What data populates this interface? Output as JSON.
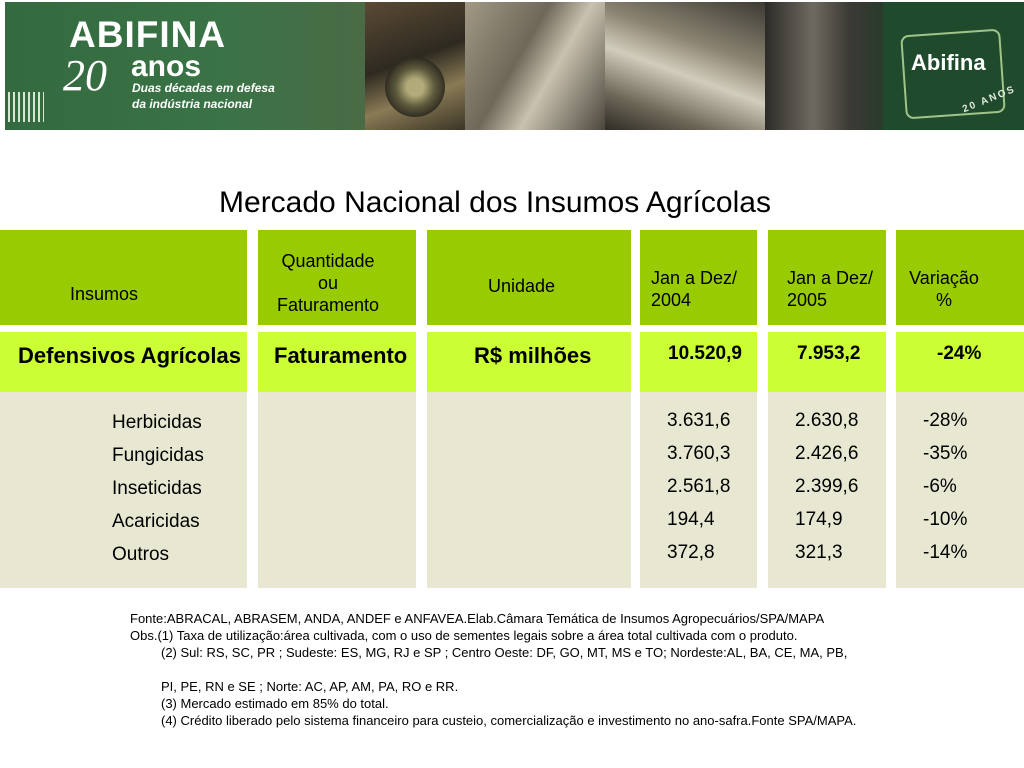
{
  "banner": {
    "brand": "ABIFINA",
    "years_number": "20",
    "years_word": "anos",
    "tagline_line1": "Duas décadas em defesa",
    "tagline_line2": "da indústria nacional",
    "logo_text": "Abifina",
    "logo_sub": "20 ANOS"
  },
  "title": "Mercado Nacional dos Insumos Agrícolas",
  "table": {
    "headers": {
      "insumos": "Insumos",
      "quantidade_l1": "Quantidade",
      "quantidade_l2": "ou",
      "quantidade_l3": "Faturamento",
      "unidade": "Unidade",
      "y2004_l1": "Jan a Dez/",
      "y2004_l2": "2004",
      "y2005_l1": "Jan a Dez/",
      "y2005_l2": "2005",
      "var_l1": "Variação",
      "var_l2": "%"
    },
    "total": {
      "name": "Defensivos Agrícolas",
      "tipo": "Faturamento",
      "unidade": "R$ milhões",
      "v2004": "10.520,9",
      "v2005": "7.953,2",
      "variacao": "-24%"
    },
    "rows": [
      {
        "name": "Herbicidas",
        "v2004": "3.631,6",
        "v2005": "2.630,8",
        "variacao": "-28%"
      },
      {
        "name": "Fungicidas",
        "v2004": "3.760,3",
        "v2005": "2.426,6",
        "variacao": "-35%"
      },
      {
        "name": "Inseticidas",
        "v2004": "2.561,8",
        "v2005": "2.399,6",
        "variacao": "-6%"
      },
      {
        "name": "Acaricidas",
        "v2004": "194,4",
        "v2005": "174,9",
        "variacao": "-10%"
      },
      {
        "name": "Outros",
        "v2004": "372,8",
        "v2005": "321,3",
        "variacao": "-14%"
      }
    ]
  },
  "notes": {
    "fonte": "Fonte:ABRACAL, ABRASEM, ANDA, ANDEF e ANFAVEA.Elab.Câmara Temática de Insumos Agropecuários/SPA/MAPA",
    "obs1": "Obs.(1) Taxa de utilização:área cultivada, com o uso de sementes legais sobre a área total cultivada com o produto.",
    "obs2a": "(2) Sul: RS, SC, PR ; Sudeste: ES, MG, RJ e SP ; Centro Oeste: DF, GO, MT, MS e TO; Nordeste:AL, BA, CE, MA, PB,",
    "obs2b": "PI, PE, RN e SE ; Norte: AC, AP, AM, PA, RO e RR.",
    "obs3": "(3) Mercado estimado em 85% do total.",
    "obs4": "(4) Crédito liberado pelo sistema financeiro para custeio, comercialização e investimento no ano-safra.Fonte SPA/MAPA."
  }
}
